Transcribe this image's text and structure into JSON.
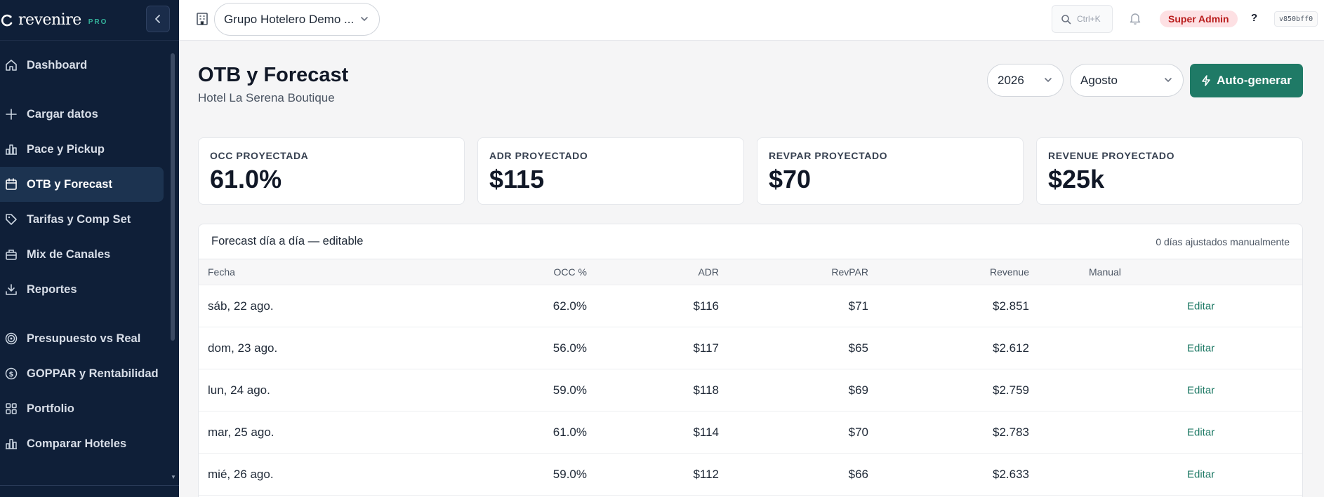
{
  "app": {
    "logo_text": "revenire",
    "logo_badge": "PRO"
  },
  "sidebar": {
    "items": [
      {
        "label": "Dashboard",
        "icon": "home-icon"
      },
      {
        "label": "Cargar datos",
        "icon": "plus-icon"
      },
      {
        "label": "Pace y Pickup",
        "icon": "bar-chart-icon"
      },
      {
        "label": "OTB y Forecast",
        "icon": "calendar-icon",
        "active": true
      },
      {
        "label": "Tarifas y Comp Set",
        "icon": "tag-icon"
      },
      {
        "label": "Mix de Canales",
        "icon": "briefcase-icon"
      },
      {
        "label": "Reportes",
        "icon": "download-icon"
      },
      {
        "label": "Presupuesto vs Real",
        "icon": "target-icon"
      },
      {
        "label": "GOPPAR y Rentabilidad",
        "icon": "dollar-circle-icon"
      },
      {
        "label": "Portfolio",
        "icon": "grid-icon"
      },
      {
        "label": "Comparar Hoteles",
        "icon": "bar-chart-icon"
      }
    ]
  },
  "topbar": {
    "org_select": "Grupo Hotelero Demo ...",
    "search_shortcut": "Ctrl+K",
    "role_badge": "Super Admin",
    "help": "?",
    "version": "v850bff0"
  },
  "page": {
    "title": "OTB y Forecast",
    "subtitle": "Hotel La Serena Boutique",
    "year": "2026",
    "month": "Agosto",
    "autogen_label": "Auto-generar"
  },
  "kpis": [
    {
      "label": "OCC PROYECTADA",
      "value": "61.0%"
    },
    {
      "label": "ADR PROYECTADO",
      "value": "$115"
    },
    {
      "label": "REVPAR PROYECTADO",
      "value": "$70"
    },
    {
      "label": "REVENUE PROYECTADO",
      "value": "$25k"
    }
  ],
  "forecast": {
    "title": "Forecast día a día — editable",
    "note": "0 días ajustados manualmente",
    "columns": {
      "fecha": "Fecha",
      "occ": "OCC %",
      "adr": "ADR",
      "revpar": "RevPAR",
      "revenue": "Revenue",
      "manual": "Manual"
    },
    "rows": [
      {
        "fecha": "sáb, 22 ago.",
        "occ": "62.0%",
        "adr": "$116",
        "revpar": "$71",
        "revenue": "$2.851",
        "manual": "",
        "action": "Editar"
      },
      {
        "fecha": "dom, 23 ago.",
        "occ": "56.0%",
        "adr": "$117",
        "revpar": "$65",
        "revenue": "$2.612",
        "manual": "",
        "action": "Editar"
      },
      {
        "fecha": "lun, 24 ago.",
        "occ": "59.0%",
        "adr": "$118",
        "revpar": "$69",
        "revenue": "$2.759",
        "manual": "",
        "action": "Editar"
      },
      {
        "fecha": "mar, 25 ago.",
        "occ": "61.0%",
        "adr": "$114",
        "revpar": "$70",
        "revenue": "$2.783",
        "manual": "",
        "action": "Editar"
      },
      {
        "fecha": "mié, 26 ago.",
        "occ": "59.0%",
        "adr": "$112",
        "revpar": "$66",
        "revenue": "$2.633",
        "manual": "",
        "action": "Editar"
      }
    ]
  },
  "colors": {
    "sidebar_bg": "#0f1f38",
    "accent": "#1f7a66",
    "badge_bg": "#fde0e3",
    "badge_text": "#b91c1c"
  }
}
